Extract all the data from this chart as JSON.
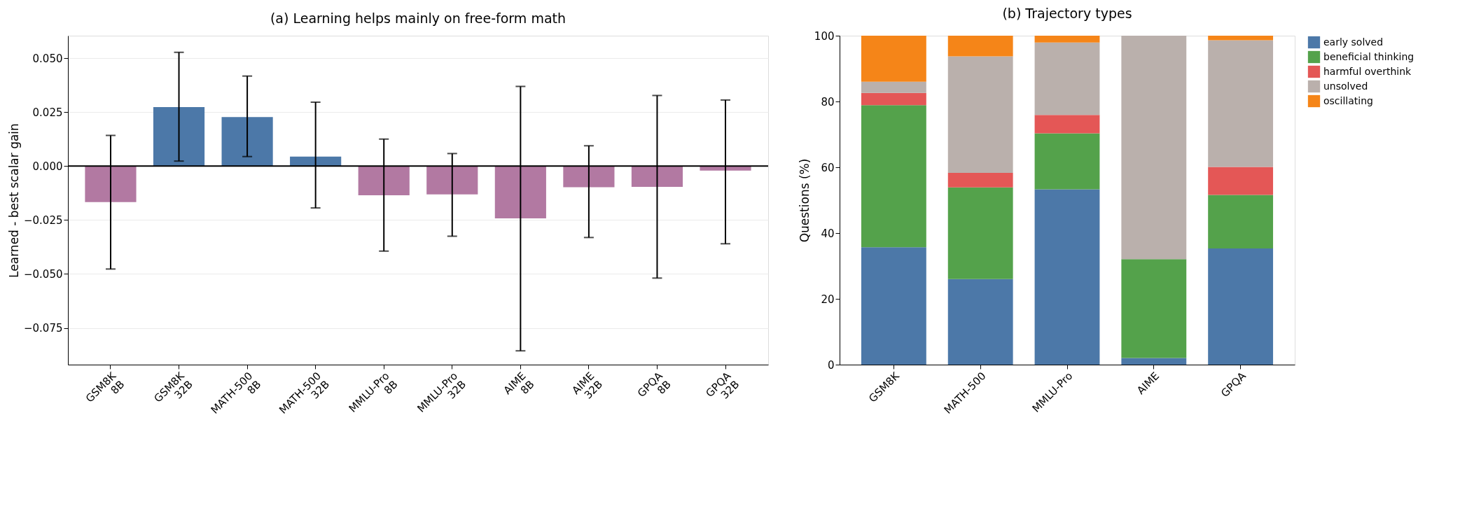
{
  "chart_data": [
    {
      "type": "bar",
      "title": "(a) Learning helps mainly on free-form math",
      "ylabel": "Learned - best scalar gain",
      "categories": [
        "GSM8K\n8B",
        "GSM8K\n32B",
        "MATH-500\n8B",
        "MATH-500\n32B",
        "MMLU-Pro\n8B",
        "MMLU-Pro\n32B",
        "AIME\n8B",
        "AIME\n32B",
        "GPQA\n8B",
        "GPQA\n32B"
      ],
      "values": [
        -0.0167,
        0.0273,
        0.0227,
        0.0044,
        -0.0135,
        -0.0131,
        -0.0242,
        -0.0098,
        -0.0096,
        -0.0021
      ],
      "colors": [
        "#b279a2",
        "#4c78a8",
        "#4c78a8",
        "#4c78a8",
        "#b279a2",
        "#b279a2",
        "#b279a2",
        "#b279a2",
        "#b279a2",
        "#b279a2"
      ],
      "errors": [
        [
          -0.0477,
          0.0142
        ],
        [
          0.0023,
          0.0527
        ],
        [
          0.0044,
          0.0417
        ],
        [
          -0.0194,
          0.0296
        ],
        [
          -0.0394,
          0.0125
        ],
        [
          -0.0325,
          0.0058
        ],
        [
          -0.0856,
          0.0369
        ],
        [
          -0.0331,
          0.0094
        ],
        [
          -0.0519,
          0.0327
        ],
        [
          -0.036,
          0.0306
        ]
      ],
      "ylim": [
        -0.092,
        0.0604
      ],
      "yticks": [
        {
          "value": -0.075,
          "label": "−0.075"
        },
        {
          "value": -0.05,
          "label": "−0.050"
        },
        {
          "value": -0.025,
          "label": "−0.025"
        },
        {
          "value": 0,
          "label": "0.000"
        },
        {
          "value": 0.025,
          "label": "0.025"
        },
        {
          "value": 0.05,
          "label": "0.050"
        }
      ],
      "ref_lines": [
        {
          "axis": "y",
          "value": 0,
          "color": "#000000"
        }
      ],
      "grid": "y",
      "legend": false
    },
    {
      "type": "bar",
      "title": "(b) Trajectory types",
      "ylabel": "Questions (%)",
      "stacked": true,
      "categories": [
        "GSM8K",
        "MATH-500",
        "MMLU-Pro",
        "AIME",
        "GPQA"
      ],
      "series": [
        {
          "name": "early solved",
          "color": "#4c78a8",
          "values": [
            35.7,
            26.0,
            53.3,
            2.0,
            35.3
          ]
        },
        {
          "name": "beneficial thinking",
          "color": "#54a24b",
          "values": [
            43.2,
            27.9,
            17.0,
            30.1,
            16.3
          ]
        },
        {
          "name": "harmful overthink",
          "color": "#e45756",
          "values": [
            3.7,
            4.4,
            5.6,
            0,
            8.5
          ]
        },
        {
          "name": "unsolved",
          "color": "#bab0ac",
          "values": [
            3.4,
            35.4,
            22.0,
            67.9,
            38.5
          ]
        },
        {
          "name": "oscillating",
          "color": "#f58518",
          "values": [
            14.0,
            6.3,
            2.1,
            0,
            1.4
          ]
        }
      ],
      "ylim": [
        0,
        100
      ],
      "yticks": [
        0,
        20,
        40,
        60,
        80,
        100
      ],
      "grid": false,
      "legend": "right"
    }
  ]
}
